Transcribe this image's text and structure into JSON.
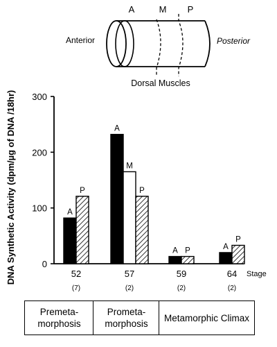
{
  "diagram": {
    "region_labels": [
      "A",
      "M",
      "P"
    ],
    "anterior_label": "Anterior",
    "posterior_label": "Posterior",
    "muscle_label": "Dorsal Muscles"
  },
  "chart_data": {
    "type": "bar",
    "ylabel": "DNA Synthetic Activity (dpm/µg of DNA /18hr)",
    "xlabel": "Stage",
    "ylim": [
      0,
      300
    ],
    "yticks": [
      0,
      100,
      200,
      300
    ],
    "groups": [
      {
        "stage": "52",
        "n": "(7)",
        "bars": [
          {
            "label": "A",
            "value": 82,
            "fill": "black"
          },
          {
            "label": "P",
            "value": 121,
            "fill": "hatched"
          }
        ]
      },
      {
        "stage": "57",
        "n": "(2)",
        "bars": [
          {
            "label": "A",
            "value": 232,
            "fill": "black"
          },
          {
            "label": "M",
            "value": 165,
            "fill": "white"
          },
          {
            "label": "P",
            "value": 121,
            "fill": "hatched"
          }
        ]
      },
      {
        "stage": "59",
        "n": "(2)",
        "bars": [
          {
            "label": "A",
            "value": 13,
            "fill": "black"
          },
          {
            "label": "P",
            "value": 13,
            "fill": "hatched"
          }
        ]
      },
      {
        "stage": "64",
        "n": "(2)",
        "bars": [
          {
            "label": "A",
            "value": 20,
            "fill": "black"
          },
          {
            "label": "P",
            "value": 33,
            "fill": "hatched"
          }
        ]
      }
    ],
    "phases": [
      "Premeta-\nmorphosis",
      "Prometa-\nmorphosis",
      "Metamorphic Climax"
    ]
  }
}
